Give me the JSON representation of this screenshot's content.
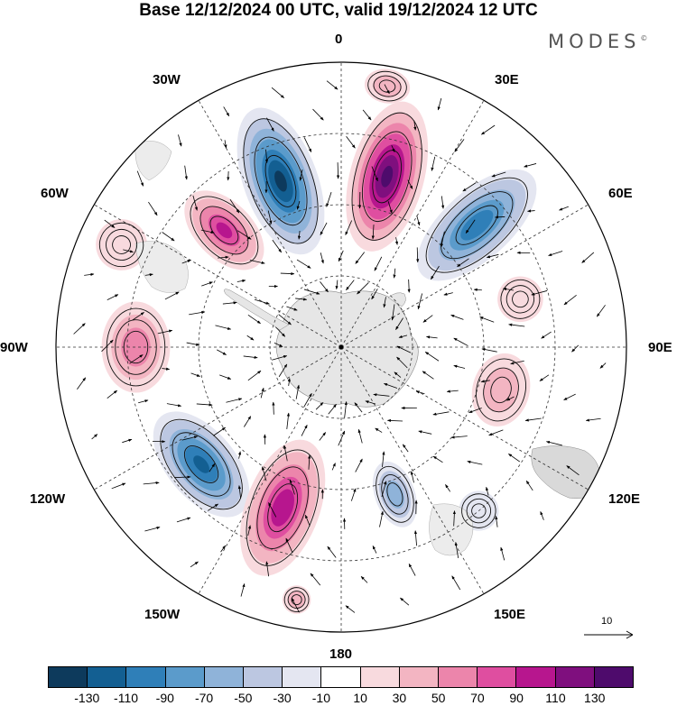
{
  "title": "Base 12/12/2024 00 UTC, valid 19/12/2024 12 UTC",
  "brand": "MODES",
  "brand_mark": "©",
  "longitude_labels": {
    "deg0": "0",
    "deg30e": "30E",
    "deg60e": "60E",
    "deg90e": "90E",
    "deg120e": "120E",
    "deg150e": "150E",
    "deg180": "180",
    "deg150w": "150W",
    "deg120w": "120W",
    "deg90w": "90W",
    "deg60w": "60W",
    "deg30w": "30W"
  },
  "reference_vector": {
    "label": "10"
  },
  "colorbar": {
    "colors": [
      "#0d3a5c",
      "#135f92",
      "#2f7fb8",
      "#5b9bcb",
      "#8fb3d9",
      "#bcc7e1",
      "#e4e6f1",
      "#ffffff",
      "#f8dade",
      "#f3b5c2",
      "#ec85ab",
      "#df4ea0",
      "#b7168e",
      "#7f0f7e",
      "#4e0b6c"
    ],
    "ticks": [
      "-130",
      "-110",
      "-90",
      "-70",
      "-50",
      "-30",
      "-10",
      "10",
      "30",
      "50",
      "70",
      "90",
      "110",
      "130"
    ]
  },
  "anomaly_centers": [
    {
      "lon": -20,
      "r": 0.62,
      "rx": 0.13,
      "ry": 0.27,
      "value": -130
    },
    {
      "lon": 15,
      "r": 0.62,
      "rx": 0.13,
      "ry": 0.27,
      "value": 130
    },
    {
      "lon": 48,
      "r": 0.64,
      "rx": 0.12,
      "ry": 0.26,
      "value": -100
    },
    {
      "lon": -45,
      "r": 0.58,
      "rx": 0.1,
      "ry": 0.17,
      "value": 90
    },
    {
      "lon": -90,
      "r": 0.72,
      "rx": 0.16,
      "ry": 0.12,
      "value": 60
    },
    {
      "lon": -130,
      "r": 0.64,
      "rx": 0.22,
      "ry": 0.12,
      "value": -110
    },
    {
      "lon": -160,
      "r": 0.6,
      "rx": 0.13,
      "ry": 0.25,
      "value": 100
    },
    {
      "lon": 160,
      "r": 0.55,
      "rx": 0.07,
      "ry": 0.12,
      "value": -60
    },
    {
      "lon": 105,
      "r": 0.58,
      "rx": 0.13,
      "ry": 0.1,
      "value": 40
    },
    {
      "lon": 75,
      "r": 0.65,
      "rx": 0.08,
      "ry": 0.08,
      "value": 25
    },
    {
      "lon": -65,
      "r": 0.85,
      "rx": 0.09,
      "ry": 0.09,
      "value": 25
    },
    {
      "lon": 10,
      "r": 0.93,
      "rx": 0.08,
      "ry": 0.06,
      "value": 45
    },
    {
      "lon": 140,
      "r": 0.75,
      "rx": 0.07,
      "ry": 0.07,
      "value": -25
    },
    {
      "lon": -170,
      "r": 0.9,
      "rx": 0.05,
      "ry": 0.05,
      "value": 40
    }
  ]
}
